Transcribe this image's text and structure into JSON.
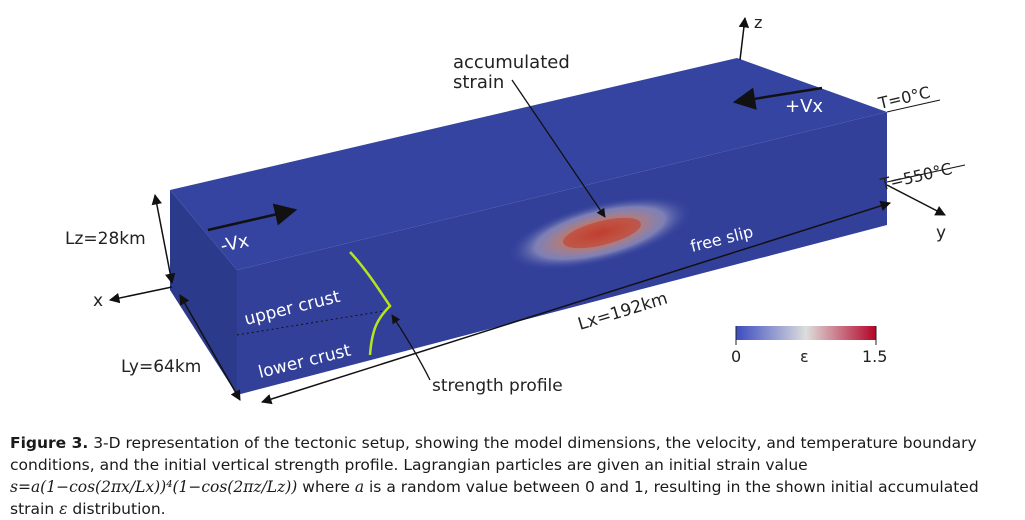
{
  "labels": {
    "accumulated_strain_line1": "accumulated",
    "accumulated_strain_line2": "strain",
    "z_axis": "z",
    "y_axis": "y",
    "x_axis": "x",
    "plus_vx": "+Vx",
    "minus_vx": "-Vx",
    "t_top": "T=0°C",
    "t_bottom": "T=550°C",
    "free_slip": "free slip",
    "lz": "Lz=28km",
    "ly": "Ly=64km",
    "lx": "Lx=192km",
    "upper_crust": "upper crust",
    "lower_crust": "lower crust",
    "strength_profile": "strength profile"
  },
  "colorbar": {
    "min_label": "0",
    "mid_label": "ε",
    "max_label": "1.5",
    "colors": [
      "#3b4cc0",
      "#dddddd",
      "#b40426"
    ]
  },
  "colors": {
    "box_top": "#3544a0",
    "box_front": "#33409a",
    "box_side": "#2c3a8c",
    "strength_profile": "#b5e61d"
  },
  "caption": {
    "figure_label": "Figure 3.",
    "text_1": " 3-D representation of the tectonic setup, showing the model dimensions, the velocity, and temperature boundary conditions, and the initial vertical strength profile. Lagrangian particles are given an initial strain value ",
    "formula": "s=a(1−cos(2πx/Lx))⁴(1−cos(2πz/Lz))",
    "text_2": " where ",
    "a_symbol": "a",
    "text_3": " is a random value between 0 and 1, resulting in the shown initial accumulated strain ",
    "epsilon": "ε",
    "text_4": " distribution."
  }
}
